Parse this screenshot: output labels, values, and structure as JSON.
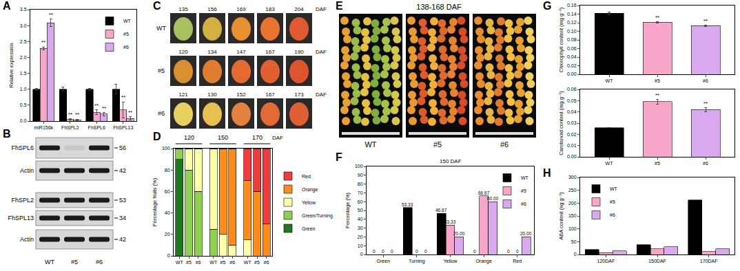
{
  "panel_labels": [
    "A",
    "B",
    "C",
    "D",
    "E",
    "F",
    "G",
    "H"
  ],
  "blot": {
    "rows": [
      {
        "label": "FhSPL6",
        "kda": 56
      },
      {
        "label": "Actin",
        "kda": 42
      },
      {
        "label": "FhSPL2",
        "kda": 53
      },
      {
        "label": "FhSPL13",
        "kda": 34
      },
      {
        "label": "Actin",
        "kda": 42
      }
    ],
    "lanes": [
      "WT",
      "#5",
      "#6"
    ]
  },
  "photos_C": {
    "unit": "DAF",
    "rows": [
      {
        "label": "WT",
        "days": [
          135,
          156,
          169,
          183,
          204
        ]
      },
      {
        "label": "#5",
        "days": [
          120,
          134,
          147,
          167,
          190
        ]
      },
      {
        "label": "#6",
        "days": [
          121,
          130,
          152,
          167,
          173
        ]
      }
    ]
  },
  "photos_E": {
    "title": "138-168 DAF",
    "labels": [
      "WT",
      "#5",
      "#6"
    ]
  },
  "chart_data": [
    {
      "type": "bar",
      "ylabel": "Relative expression",
      "categories": [
        "miR156k",
        "FhSPL2",
        "FhSPL6",
        "FhSPL13"
      ],
      "series": [
        {
          "name": "WT",
          "color": "#000000",
          "values": [
            1,
            1,
            1,
            1
          ],
          "errors": [
            0.03,
            0.06,
            0.03,
            0.15
          ],
          "significance": [
            null,
            null,
            null,
            null
          ]
        },
        {
          "name": "#5",
          "color": "#f7a6c9",
          "values": [
            2.28,
            0.05,
            0.28,
            0.35
          ],
          "errors": [
            0.05,
            0.02,
            0.08,
            0.25
          ],
          "significance": [
            "**",
            "**",
            "**",
            "**"
          ]
        },
        {
          "name": "#6",
          "color": "#d9a8ee",
          "values": [
            3.08,
            0.04,
            0.22,
            0.08
          ],
          "errors": [
            0.12,
            0.02,
            0.05,
            0.05
          ],
          "significance": [
            "**",
            "**",
            "**",
            "**"
          ]
        }
      ],
      "ylim": [
        0,
        3.5
      ],
      "yticks": [
        {
          "value": 0,
          "label": "0.0"
        },
        0.5,
        {
          "value": 1,
          "label": "1.0"
        },
        1.5,
        {
          "value": 2,
          "label": "2.0"
        },
        2.5,
        {
          "value": 3,
          "label": "3.0"
        },
        3.5
      ],
      "legend": "top right"
    },
    {
      "type": "bar",
      "stacked": true,
      "ylabel": "Percentage fruits (%)",
      "groups": [
        "120",
        "150",
        "170"
      ],
      "group_label": "DAF",
      "categories": [
        "WT",
        "#5",
        "#6",
        "WT",
        "#5",
        "#6",
        "WT",
        "#5",
        "#6"
      ],
      "series": [
        {
          "name": "Green",
          "color": "#1e7a1e",
          "values": [
            90,
            0,
            0,
            0,
            0,
            0,
            0,
            0,
            0
          ]
        },
        {
          "name": "Green/Turning",
          "color": "#8fd14f",
          "values": [
            10,
            80,
            60,
            25,
            0,
            0,
            0,
            0,
            0
          ]
        },
        {
          "name": "Yellow",
          "color": "#ffffa8",
          "values": [
            0,
            20,
            40,
            75,
            20,
            10,
            15,
            0,
            0
          ]
        },
        {
          "name": "Orange",
          "color": "#ff8c1a",
          "values": [
            0,
            0,
            0,
            0,
            80,
            90,
            55,
            60,
            30
          ]
        },
        {
          "name": "Red",
          "color": "#f03c3c",
          "values": [
            0,
            0,
            0,
            0,
            0,
            0,
            30,
            40,
            70
          ]
        }
      ],
      "ylim": [
        0,
        100
      ],
      "yticks": [
        0,
        20,
        40,
        60,
        80,
        100
      ],
      "legend": "right"
    },
    {
      "type": "bar",
      "title": "150 DAF",
      "ylabel": "Percentage (%)",
      "categories": [
        "Green",
        "Turning",
        "Yellow",
        "Orange",
        "Red"
      ],
      "series": [
        {
          "name": "WT",
          "color": "#000000",
          "values": [
            0,
            53.33,
            46.67,
            0,
            0
          ],
          "value_labels": [
            "0",
            "53.33",
            "46.67",
            "0",
            "0"
          ]
        },
        {
          "name": "#5",
          "color": "#f7a6c9",
          "values": [
            0,
            0,
            33.33,
            66.67,
            0
          ],
          "value_labels": [
            "0",
            "0",
            "33.33",
            "66.67",
            "0"
          ]
        },
        {
          "name": "#6",
          "color": "#d9a8ee",
          "values": [
            0,
            0,
            20,
            60,
            20
          ],
          "value_labels": [
            "0",
            "0",
            "20.00",
            "60.00",
            "20.00"
          ]
        }
      ],
      "data_labels": true,
      "ylim": [
        0,
        100
      ],
      "yticks": [
        0,
        10,
        20,
        30,
        40,
        50,
        60,
        70,
        80,
        90,
        100
      ],
      "legend": "top right"
    },
    {
      "type": "bar",
      "ylabel": "Chlorophyll content (mg g⁻¹)",
      "categories": [
        "WT",
        "#5",
        "#6"
      ],
      "values": [
        0.142,
        0.121,
        0.113
      ],
      "errors": [
        0.003,
        0.002,
        0.002
      ],
      "significance": [
        null,
        "**",
        "**"
      ],
      "colors": [
        "#000000",
        "#f7a6c9",
        "#d9a8ee"
      ],
      "ylim": [
        0,
        0.16
      ],
      "yticks": [
        {
          "value": 0,
          "label": "0.00"
        },
        0.02,
        0.04,
        0.06,
        0.08,
        {
          "value": 0.1,
          "label": "0.10"
        },
        0.12,
        0.14,
        0.16
      ]
    },
    {
      "type": "bar",
      "ylabel": "Carotenoid content (mg g⁻¹)",
      "categories": [
        "WT",
        "#5",
        "#6"
      ],
      "values": [
        0.026,
        0.049,
        0.042
      ],
      "errors": [
        0,
        0.002,
        0.002
      ],
      "significance": [
        null,
        "**",
        "**"
      ],
      "colors": [
        "#000000",
        "#f7a6c9",
        "#d9a8ee"
      ],
      "ylim": [
        0,
        0.06
      ],
      "yticks": [
        {
          "value": 0,
          "label": "0.00"
        },
        0.01,
        0.02,
        0.03,
        0.04,
        0.05,
        0.06
      ]
    },
    {
      "type": "bar",
      "ylabel": "ABA content (ng g⁻¹)",
      "categories": [
        "120DAF",
        "150DAF",
        "170DAF"
      ],
      "series": [
        {
          "name": "WT",
          "color": "#000000",
          "values": [
            20,
            38,
            212
          ]
        },
        {
          "name": "#5",
          "color": "#f7a6c9",
          "values": [
            8,
            22,
            12
          ]
        },
        {
          "name": "#6",
          "color": "#d9a8ee",
          "values": [
            14,
            30,
            22
          ]
        }
      ],
      "ylim": [
        0,
        300
      ],
      "yticks": [
        0,
        50,
        100,
        150,
        200,
        250,
        300
      ],
      "legend": "top left"
    }
  ]
}
